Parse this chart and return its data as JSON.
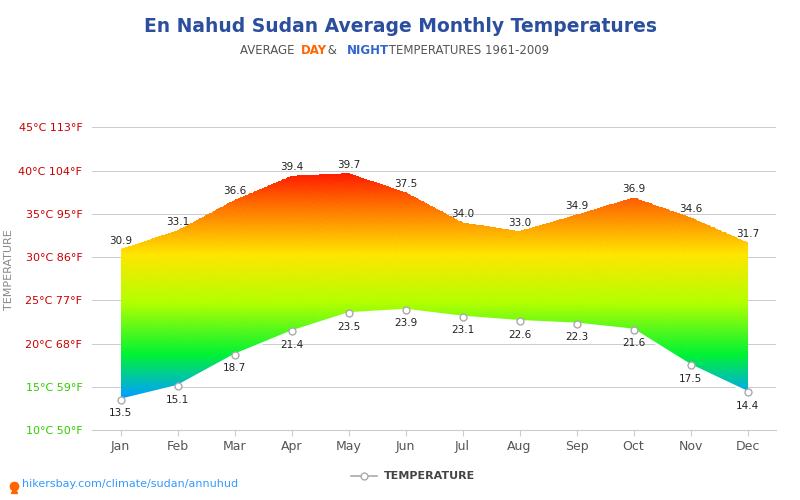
{
  "title": "En Nahud Sudan Average Monthly Temperatures",
  "subtitle_parts": [
    "AVERAGE ",
    "DAY",
    " & ",
    "NIGHT",
    " TEMPERATURES 1961-2009"
  ],
  "subtitle_colors": [
    "#555555",
    "#ff6600",
    "#555555",
    "#3366cc",
    "#555555"
  ],
  "months": [
    "Jan",
    "Feb",
    "Mar",
    "Apr",
    "May",
    "Jun",
    "Jul",
    "Aug",
    "Sep",
    "Oct",
    "Nov",
    "Dec"
  ],
  "day_temps": [
    30.9,
    33.1,
    36.6,
    39.4,
    39.7,
    37.5,
    34.0,
    33.0,
    34.9,
    36.9,
    34.6,
    31.7
  ],
  "night_temps": [
    13.5,
    15.1,
    18.7,
    21.4,
    23.5,
    23.9,
    23.1,
    22.6,
    22.3,
    21.6,
    17.5,
    14.4
  ],
  "yticks_c": [
    10,
    15,
    20,
    25,
    30,
    35,
    40,
    45
  ],
  "ytick_labels": [
    "10°C 50°F",
    "15°C 59°F",
    "20°C 68°F",
    "25°C 77°F",
    "30°C 86°F",
    "35°C 95°F",
    "40°C 104°F",
    "45°C 113°F"
  ],
  "ytick_colors": [
    "#33cc00",
    "#33cc00",
    "#cc0000",
    "#cc0000",
    "#cc0000",
    "#cc0000",
    "#cc0000",
    "#cc0000"
  ],
  "ylabel": "TEMPERATURE",
  "legend_label": "TEMPERATURE",
  "footer_text": "hikersbay.com/climate/sudan/annuhud",
  "bg_color": "#ffffff",
  "grid_color": "#cccccc",
  "title_color": "#2b4f9e",
  "ylabel_color": "#888888",
  "temp_gradient_stops": [
    [
      0.0,
      [
        0.05,
        0.15,
        0.8
      ]
    ],
    [
      0.12,
      [
        0.0,
        0.65,
        0.95
      ]
    ],
    [
      0.25,
      [
        0.0,
        0.95,
        0.2
      ]
    ],
    [
      0.42,
      [
        0.7,
        1.0,
        0.0
      ]
    ],
    [
      0.58,
      [
        1.0,
        0.9,
        0.0
      ]
    ],
    [
      0.72,
      [
        1.0,
        0.5,
        0.0
      ]
    ],
    [
      0.85,
      [
        1.0,
        0.1,
        0.0
      ]
    ],
    [
      1.0,
      [
        0.75,
        0.0,
        0.05
      ]
    ]
  ]
}
